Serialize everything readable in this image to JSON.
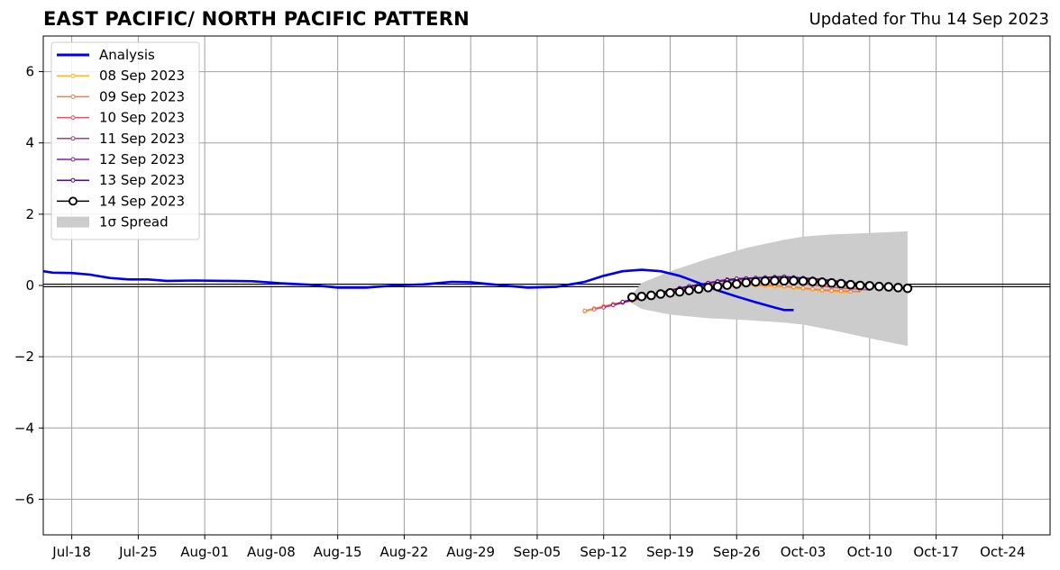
{
  "header": {
    "title": "EAST PACIFIC/ NORTH PACIFIC PATTERN",
    "updated": "Updated for Thu 14 Sep 2023"
  },
  "chart_data": {
    "type": "line",
    "title": "EAST PACIFIC/ NORTH PACIFIC PATTERN",
    "xlabel": "",
    "ylabel": "",
    "x_range": [
      "2023-07-15",
      "2023-10-29"
    ],
    "ylim": [
      -7,
      7
    ],
    "x_ticks": [
      {
        "date": "2023-07-18",
        "label": "Jul-18"
      },
      {
        "date": "2023-07-25",
        "label": "Jul-25"
      },
      {
        "date": "2023-08-01",
        "label": "Aug-01"
      },
      {
        "date": "2023-08-08",
        "label": "Aug-08"
      },
      {
        "date": "2023-08-15",
        "label": "Aug-15"
      },
      {
        "date": "2023-08-22",
        "label": "Aug-22"
      },
      {
        "date": "2023-08-29",
        "label": "Aug-29"
      },
      {
        "date": "2023-09-05",
        "label": "Sep-05"
      },
      {
        "date": "2023-09-12",
        "label": "Sep-12"
      },
      {
        "date": "2023-09-19",
        "label": "Sep-19"
      },
      {
        "date": "2023-09-26",
        "label": "Sep-26"
      },
      {
        "date": "2023-10-03",
        "label": "Oct-03"
      },
      {
        "date": "2023-10-10",
        "label": "Oct-10"
      },
      {
        "date": "2023-10-17",
        "label": "Oct-17"
      },
      {
        "date": "2023-10-24",
        "label": "Oct-24"
      }
    ],
    "y_ticks": [
      {
        "value": 6,
        "label": "6"
      },
      {
        "value": 4,
        "label": "4"
      },
      {
        "value": 2,
        "label": "2"
      },
      {
        "value": 0,
        "label": "0"
      },
      {
        "value": -2,
        "label": "−2"
      },
      {
        "value": -4,
        "label": "−4"
      },
      {
        "value": -6,
        "label": "−6"
      }
    ],
    "grid": true,
    "legend_position": "top-left",
    "zero_line": true,
    "analysis": {
      "name": "Analysis",
      "color": "#0000ee",
      "points": [
        [
          "2023-07-15",
          0.4
        ],
        [
          "2023-07-16",
          0.36
        ],
        [
          "2023-07-18",
          0.35
        ],
        [
          "2023-07-20",
          0.3
        ],
        [
          "2023-07-22",
          0.21
        ],
        [
          "2023-07-24",
          0.17
        ],
        [
          "2023-07-26",
          0.17
        ],
        [
          "2023-07-28",
          0.13
        ],
        [
          "2023-07-31",
          0.14
        ],
        [
          "2023-08-03",
          0.13
        ],
        [
          "2023-08-06",
          0.12
        ],
        [
          "2023-08-09",
          0.06
        ],
        [
          "2023-08-12",
          0.02
        ],
        [
          "2023-08-15",
          -0.06
        ],
        [
          "2023-08-18",
          -0.06
        ],
        [
          "2023-08-21",
          0.0
        ],
        [
          "2023-08-24",
          0.03
        ],
        [
          "2023-08-27",
          0.1
        ],
        [
          "2023-08-29",
          0.09
        ],
        [
          "2023-09-01",
          0.01
        ],
        [
          "2023-09-04",
          -0.06
        ],
        [
          "2023-09-07",
          -0.04
        ],
        [
          "2023-09-10",
          0.1
        ],
        [
          "2023-09-12",
          0.27
        ],
        [
          "2023-09-14",
          0.4
        ],
        [
          "2023-09-16",
          0.44
        ],
        [
          "2023-09-18",
          0.4
        ],
        [
          "2023-09-20",
          0.27
        ],
        [
          "2023-09-22",
          0.07
        ],
        [
          "2023-09-24",
          -0.14
        ],
        [
          "2023-09-26",
          -0.31
        ],
        [
          "2023-09-28",
          -0.47
        ],
        [
          "2023-09-30",
          -0.62
        ],
        [
          "2023-10-01",
          -0.69
        ],
        [
          "2023-10-02",
          -0.69
        ]
      ]
    },
    "forecasts": [
      {
        "name": "08 Sep 2023",
        "color": "#ffb52e",
        "points": [
          [
            "2023-09-10",
            -0.73
          ],
          [
            "2023-09-13",
            -0.55
          ],
          [
            "2023-09-17",
            -0.32
          ],
          [
            "2023-09-22",
            -0.1
          ],
          [
            "2023-09-27",
            0.0
          ],
          [
            "2023-10-01",
            -0.04
          ],
          [
            "2023-10-05",
            -0.15
          ],
          [
            "2023-10-08",
            -0.2
          ]
        ]
      },
      {
        "name": "09 Sep 2023",
        "color": "#f07f3c",
        "points": [
          [
            "2023-09-10",
            -0.71
          ],
          [
            "2023-09-13",
            -0.52
          ],
          [
            "2023-09-17",
            -0.28
          ],
          [
            "2023-09-22",
            -0.05
          ],
          [
            "2023-09-27",
            0.04
          ],
          [
            "2023-10-01",
            -0.02
          ],
          [
            "2023-10-05",
            -0.13
          ],
          [
            "2023-10-09",
            -0.18
          ]
        ]
      },
      {
        "name": "10 Sep 2023",
        "color": "#d9556a",
        "points": [
          [
            "2023-09-11",
            -0.67
          ],
          [
            "2023-09-14",
            -0.48
          ],
          [
            "2023-09-18",
            -0.24
          ],
          [
            "2023-09-23",
            0.02
          ],
          [
            "2023-09-28",
            0.12
          ],
          [
            "2023-10-02",
            0.08
          ],
          [
            "2023-10-06",
            -0.05
          ],
          [
            "2023-10-10",
            -0.13
          ]
        ]
      },
      {
        "name": "11 Sep 2023",
        "color": "#b5348c",
        "points": [
          [
            "2023-09-12",
            -0.62
          ],
          [
            "2023-09-15",
            -0.4
          ],
          [
            "2023-09-19",
            -0.14
          ],
          [
            "2023-09-24",
            0.12
          ],
          [
            "2023-09-29",
            0.22
          ],
          [
            "2023-10-03",
            0.17
          ],
          [
            "2023-10-07",
            0.05
          ],
          [
            "2023-10-11",
            -0.04
          ]
        ]
      },
      {
        "name": "12 Sep 2023",
        "color": "#8a1ea5",
        "points": [
          [
            "2023-09-13",
            -0.55
          ],
          [
            "2023-09-16",
            -0.33
          ],
          [
            "2023-09-20",
            -0.07
          ],
          [
            "2023-09-25",
            0.17
          ],
          [
            "2023-09-30",
            0.24
          ],
          [
            "2023-10-04",
            0.19
          ],
          [
            "2023-10-08",
            0.07
          ],
          [
            "2023-10-12",
            -0.03
          ]
        ]
      },
      {
        "name": "13 Sep 2023",
        "color": "#520a8f",
        "points": [
          [
            "2023-09-14",
            -0.46
          ],
          [
            "2023-09-17",
            -0.26
          ],
          [
            "2023-09-21",
            -0.02
          ],
          [
            "2023-09-26",
            0.19
          ],
          [
            "2023-10-01",
            0.25
          ],
          [
            "2023-10-05",
            0.17
          ],
          [
            "2023-10-09",
            0.05
          ],
          [
            "2023-10-13",
            -0.05
          ]
        ]
      }
    ],
    "current_forecast": {
      "name": "14 Sep 2023",
      "color": "#000000",
      "dates": [
        "2023-09-15",
        "2023-09-16",
        "2023-09-17",
        "2023-09-18",
        "2023-09-19",
        "2023-09-20",
        "2023-09-21",
        "2023-09-22",
        "2023-09-23",
        "2023-09-24",
        "2023-09-25",
        "2023-09-26",
        "2023-09-27",
        "2023-09-28",
        "2023-09-29",
        "2023-09-30",
        "2023-10-01",
        "2023-10-02",
        "2023-10-03",
        "2023-10-04",
        "2023-10-05",
        "2023-10-06",
        "2023-10-07",
        "2023-10-08",
        "2023-10-09",
        "2023-10-10",
        "2023-10-11",
        "2023-10-12",
        "2023-10-13",
        "2023-10-14"
      ],
      "values": [
        -0.33,
        -0.31,
        -0.28,
        -0.24,
        -0.21,
        -0.18,
        -0.14,
        -0.1,
        -0.06,
        -0.03,
        0.01,
        0.04,
        0.08,
        0.1,
        0.12,
        0.13,
        0.13,
        0.13,
        0.12,
        0.11,
        0.09,
        0.07,
        0.05,
        0.02,
        0.0,
        -0.01,
        -0.03,
        -0.04,
        -0.06,
        -0.08
      ]
    },
    "spread": {
      "name": "1σ Spread",
      "color": "#cccccc",
      "points": [
        [
          "2023-09-15",
          -0.5,
          -0.25
        ],
        [
          "2023-09-16",
          -0.66,
          0.07
        ],
        [
          "2023-09-19",
          -0.82,
          0.4
        ],
        [
          "2023-09-23",
          -0.92,
          0.75
        ],
        [
          "2023-09-27",
          -0.97,
          1.05
        ],
        [
          "2023-10-01",
          -1.04,
          1.28
        ],
        [
          "2023-10-03",
          -1.1,
          1.37
        ],
        [
          "2023-10-06",
          -1.25,
          1.43
        ],
        [
          "2023-10-10",
          -1.48,
          1.47
        ],
        [
          "2023-10-14",
          -1.7,
          1.52
        ]
      ]
    },
    "legend": [
      {
        "label": "Analysis",
        "color": "#0000ee",
        "style": "thick-line"
      },
      {
        "label": "08 Sep 2023",
        "color": "#ffb52e",
        "style": "line-dot"
      },
      {
        "label": "09 Sep 2023",
        "color": "#f07f3c",
        "style": "line-dot"
      },
      {
        "label": "10 Sep 2023",
        "color": "#d9556a",
        "style": "line-dot"
      },
      {
        "label": "11 Sep 2023",
        "color": "#b5348c",
        "style": "line-dot"
      },
      {
        "label": "12 Sep 2023",
        "color": "#8a1ea5",
        "style": "line-dot"
      },
      {
        "label": "13 Sep 2023",
        "color": "#520a8f",
        "style": "line-dot"
      },
      {
        "label": "14 Sep 2023",
        "color": "#000000",
        "style": "line-circle"
      },
      {
        "label": "1σ Spread",
        "color": "#cccccc",
        "style": "patch"
      }
    ]
  }
}
